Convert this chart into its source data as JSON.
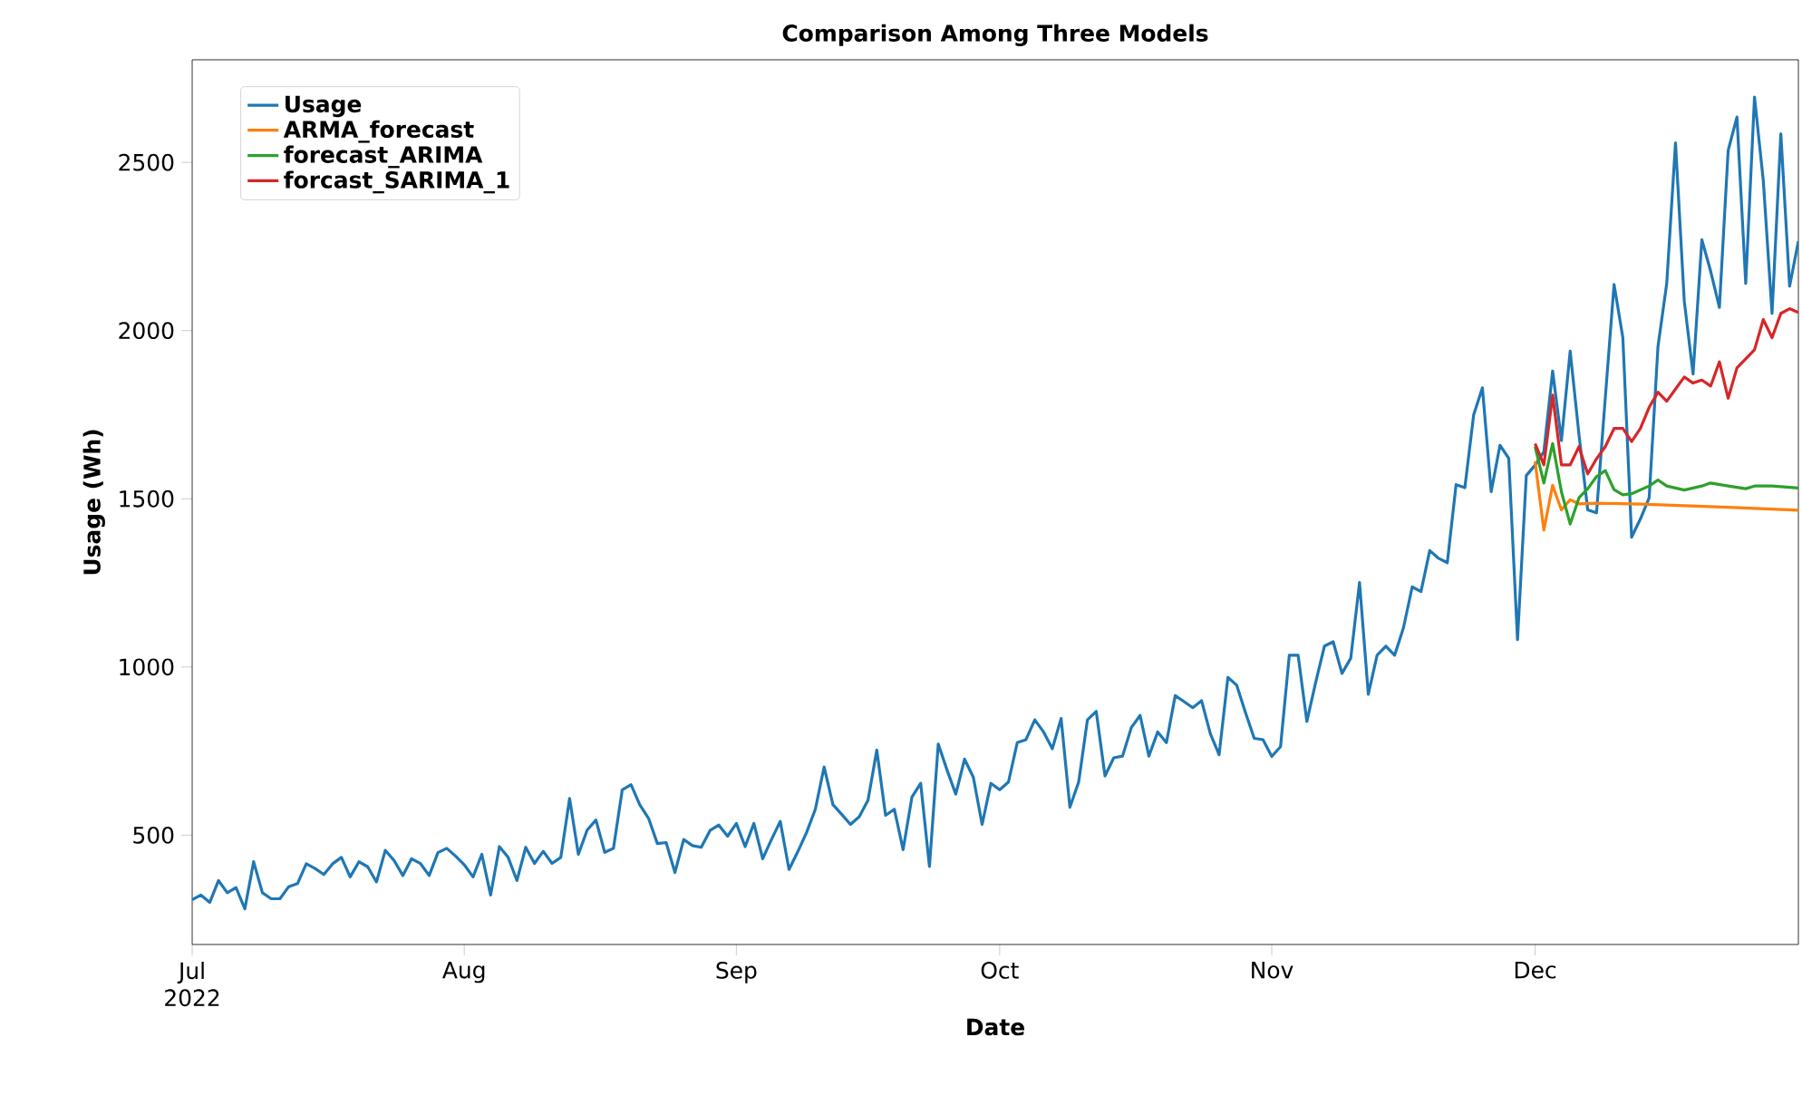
{
  "chart_data": {
    "type": "line",
    "title": "Comparison Among Three Models",
    "xlabel": "Date",
    "ylabel": "Usage (Wh)",
    "xlim": [
      "2022-07-01",
      "2022-12-31"
    ],
    "ylim": [
      175,
      2805
    ],
    "xticks": [
      {
        "value": "2022-07-01",
        "label": "Jul 2022"
      },
      {
        "value": "2022-08-01",
        "label": "Aug"
      },
      {
        "value": "2022-09-01",
        "label": "Sep"
      },
      {
        "value": "2022-10-01",
        "label": "Oct"
      },
      {
        "value": "2022-11-01",
        "label": "Nov"
      },
      {
        "value": "2022-12-01",
        "label": "Dec"
      }
    ],
    "yticks": [
      500,
      1000,
      1500,
      2000,
      2500
    ],
    "legend": "top left",
    "x": [
      "2022-07-01",
      "2022-07-02",
      "2022-07-03",
      "2022-07-04",
      "2022-07-05",
      "2022-07-06",
      "2022-07-07",
      "2022-07-08",
      "2022-07-09",
      "2022-07-10",
      "2022-07-11",
      "2022-07-12",
      "2022-07-13",
      "2022-07-14",
      "2022-07-15",
      "2022-07-16",
      "2022-07-17",
      "2022-07-18",
      "2022-07-19",
      "2022-07-20",
      "2022-07-21",
      "2022-07-22",
      "2022-07-23",
      "2022-07-24",
      "2022-07-25",
      "2022-07-26",
      "2022-07-27",
      "2022-07-28",
      "2022-07-29",
      "2022-07-30",
      "2022-07-31",
      "2022-08-01",
      "2022-08-02",
      "2022-08-03",
      "2022-08-04",
      "2022-08-05",
      "2022-08-06",
      "2022-08-07",
      "2022-08-08",
      "2022-08-09",
      "2022-08-10",
      "2022-08-11",
      "2022-08-12",
      "2022-08-13",
      "2022-08-14",
      "2022-08-15",
      "2022-08-16",
      "2022-08-17",
      "2022-08-18",
      "2022-08-19",
      "2022-08-20",
      "2022-08-21",
      "2022-08-22",
      "2022-08-23",
      "2022-08-24",
      "2022-08-25",
      "2022-08-26",
      "2022-08-27",
      "2022-08-28",
      "2022-08-29",
      "2022-08-30",
      "2022-08-31",
      "2022-09-01",
      "2022-09-02",
      "2022-09-03",
      "2022-09-04",
      "2022-09-05",
      "2022-09-06",
      "2022-09-07",
      "2022-09-08",
      "2022-09-09",
      "2022-09-10",
      "2022-09-11",
      "2022-09-12",
      "2022-09-13",
      "2022-09-14",
      "2022-09-15",
      "2022-09-16",
      "2022-09-17",
      "2022-09-18",
      "2022-09-19",
      "2022-09-20",
      "2022-09-21",
      "2022-09-22",
      "2022-09-23",
      "2022-09-24",
      "2022-09-25",
      "2022-09-26",
      "2022-09-27",
      "2022-09-28",
      "2022-09-29",
      "2022-09-30",
      "2022-10-01",
      "2022-10-02",
      "2022-10-03",
      "2022-10-04",
      "2022-10-05",
      "2022-10-06",
      "2022-10-07",
      "2022-10-08",
      "2022-10-09",
      "2022-10-10",
      "2022-10-11",
      "2022-10-12",
      "2022-10-13",
      "2022-10-14",
      "2022-10-15",
      "2022-10-16",
      "2022-10-17",
      "2022-10-18",
      "2022-10-19",
      "2022-10-20",
      "2022-10-21",
      "2022-10-22",
      "2022-10-23",
      "2022-10-24",
      "2022-10-25",
      "2022-10-26",
      "2022-10-27",
      "2022-10-28",
      "2022-10-29",
      "2022-10-30",
      "2022-10-31",
      "2022-11-01",
      "2022-11-02",
      "2022-11-03",
      "2022-11-04",
      "2022-11-05",
      "2022-11-06",
      "2022-11-07",
      "2022-11-08",
      "2022-11-09",
      "2022-11-10",
      "2022-11-11",
      "2022-11-12",
      "2022-11-13",
      "2022-11-14",
      "2022-11-15",
      "2022-11-16",
      "2022-11-17",
      "2022-11-18",
      "2022-11-19",
      "2022-11-20",
      "2022-11-21",
      "2022-11-22",
      "2022-11-23",
      "2022-11-24",
      "2022-11-25",
      "2022-11-26",
      "2022-11-27",
      "2022-11-28",
      "2022-11-29",
      "2022-11-30",
      "2022-12-01",
      "2022-12-02",
      "2022-12-03",
      "2022-12-04",
      "2022-12-05",
      "2022-12-06",
      "2022-12-07",
      "2022-12-08",
      "2022-12-09",
      "2022-12-10",
      "2022-12-11",
      "2022-12-12",
      "2022-12-13",
      "2022-12-14",
      "2022-12-15",
      "2022-12-16",
      "2022-12-17",
      "2022-12-18",
      "2022-12-19",
      "2022-12-20",
      "2022-12-21",
      "2022-12-22",
      "2022-12-23",
      "2022-12-24",
      "2022-12-25",
      "2022-12-26",
      "2022-12-27",
      "2022-12-28",
      "2022-12-29",
      "2022-12-30",
      "2022-12-31"
    ],
    "series": [
      {
        "name": "Usage",
        "color": "#1f77b4",
        "values": [
          308,
          322,
          300,
          365,
          329,
          344,
          281,
          421,
          329,
          311,
          311,
          347,
          356,
          415,
          401,
          383,
          415,
          434,
          376,
          421,
          406,
          361,
          455,
          425,
          380,
          430,
          416,
          380,
          448,
          461,
          438,
          412,
          376,
          443,
          322,
          466,
          434,
          365,
          464,
          416,
          452,
          416,
          434,
          609,
          443,
          515,
          545,
          449,
          461,
          635,
          650,
          590,
          550,
          475,
          478,
          389,
          487,
          469,
          464,
          514,
          530,
          497,
          535,
          466,
          535,
          430,
          487,
          541,
          398,
          451,
          508,
          577,
          703,
          591,
          562,
          532,
          555,
          604,
          753,
          559,
          577,
          457,
          613,
          654,
          407,
          771,
          694,
          622,
          726,
          672,
          532,
          654,
          635,
          658,
          775,
          784,
          843,
          807,
          757,
          847,
          583,
          658,
          843,
          868,
          676,
          730,
          735,
          820,
          856,
          735,
          807,
          775,
          915,
          897,
          879,
          900,
          802,
          739,
          969,
          946,
          865,
          788,
          784,
          734,
          763,
          1035,
          1035,
          838,
          954,
          1062,
          1075,
          981,
          1026,
          1251,
          919,
          1035,
          1062,
          1035,
          1116,
          1238,
          1224,
          1346,
          1323,
          1310,
          1542,
          1533,
          1749,
          1830,
          1521,
          1659,
          1620,
          1081,
          1569,
          1600,
          1640,
          1880,
          1673,
          1939,
          1691,
          1467,
          1458,
          1800,
          2137,
          1979,
          1386,
          1440,
          1503,
          1952,
          2140,
          2558,
          2087,
          1871,
          2270,
          2177,
          2069,
          2536,
          2635,
          2140,
          2694,
          2446,
          2051,
          2585,
          2132,
          2266
        ]
      },
      {
        "name": "ARMA_forecast",
        "color": "#ff7f0e",
        "x": [
          "2022-12-01",
          "2022-12-02",
          "2022-12-03",
          "2022-12-04",
          "2022-12-05",
          "2022-12-06",
          "2022-12-08",
          "2022-12-13",
          "2022-12-23",
          "2022-12-31"
        ],
        "values": [
          1611,
          1407,
          1540,
          1467,
          1497,
          1485,
          1487,
          1484,
          1475,
          1466
        ]
      },
      {
        "name": "forecast_ARIMA",
        "color": "#2ca02c",
        "x": [
          "2022-12-01",
          "2022-12-02",
          "2022-12-03",
          "2022-12-04",
          "2022-12-05",
          "2022-12-06",
          "2022-12-07",
          "2022-12-08",
          "2022-12-09",
          "2022-12-10",
          "2022-12-11",
          "2022-12-12",
          "2022-12-14",
          "2022-12-15",
          "2022-12-16",
          "2022-12-18",
          "2022-12-20",
          "2022-12-21",
          "2022-12-23",
          "2022-12-25",
          "2022-12-26",
          "2022-12-28",
          "2022-12-31"
        ],
        "values": [
          1655,
          1547,
          1664,
          1521,
          1425,
          1503,
          1530,
          1566,
          1584,
          1527,
          1512,
          1515,
          1538,
          1556,
          1538,
          1526,
          1538,
          1547,
          1538,
          1530,
          1538,
          1538,
          1532
        ]
      },
      {
        "name": "forcast_SARIMA_1",
        "color": "#d62728",
        "x": [
          "2022-12-01",
          "2022-12-02",
          "2022-12-03",
          "2022-12-04",
          "2022-12-05",
          "2022-12-06",
          "2022-12-07",
          "2022-12-08",
          "2022-12-09",
          "2022-12-10",
          "2022-12-11",
          "2022-12-12",
          "2022-12-13",
          "2022-12-14",
          "2022-12-15",
          "2022-12-16",
          "2022-12-17",
          "2022-12-18",
          "2022-12-19",
          "2022-12-20",
          "2022-12-21",
          "2022-12-22",
          "2022-12-23",
          "2022-12-24",
          "2022-12-25",
          "2022-12-26",
          "2022-12-27",
          "2022-12-28",
          "2022-12-29",
          "2022-12-30",
          "2022-12-31"
        ],
        "values": [
          1664,
          1601,
          1808,
          1601,
          1601,
          1655,
          1574,
          1619,
          1655,
          1709,
          1709,
          1670,
          1709,
          1772,
          1817,
          1790,
          1826,
          1862,
          1844,
          1853,
          1835,
          1907,
          1799,
          1889,
          1916,
          1943,
          2033,
          1979,
          2051,
          2065,
          2054
        ]
      }
    ]
  }
}
